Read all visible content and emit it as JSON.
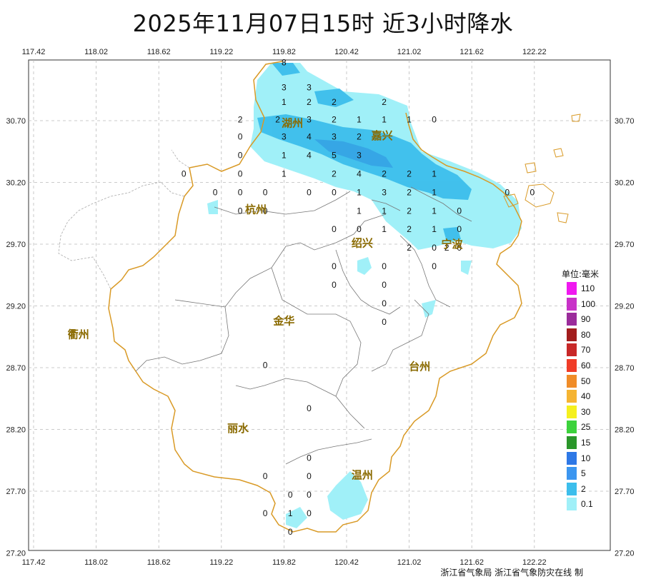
{
  "title": "2025年11月07日15时  近3小时降水",
  "credit": "浙江省气象局  浙江省气象防灾在线  制",
  "axes": {
    "lon_ticks": [
      "117.42",
      "118.02",
      "118.62",
      "119.22",
      "119.82",
      "120.42",
      "121.02",
      "121.62",
      "122.22"
    ],
    "lat_ticks": [
      "30.70",
      "30.20",
      "29.70",
      "29.20",
      "28.70",
      "28.20",
      "27.70",
      "27.20"
    ]
  },
  "cities": [
    {
      "name": "湖州",
      "lon": 119.9,
      "lat": 30.68
    },
    {
      "name": "嘉兴",
      "lon": 120.76,
      "lat": 30.58
    },
    {
      "name": "杭州",
      "lon": 119.55,
      "lat": 29.98
    },
    {
      "name": "绍兴",
      "lon": 120.57,
      "lat": 29.71
    },
    {
      "name": "宁波",
      "lon": 121.43,
      "lat": 29.7
    },
    {
      "name": "衢州",
      "lon": 117.85,
      "lat": 28.97
    },
    {
      "name": "金华",
      "lon": 119.82,
      "lat": 29.08
    },
    {
      "name": "台州",
      "lon": 121.12,
      "lat": 28.71
    },
    {
      "name": "丽水",
      "lon": 119.38,
      "lat": 28.21
    },
    {
      "name": "温州",
      "lon": 120.57,
      "lat": 27.83
    }
  ],
  "stations": [
    {
      "v": "8",
      "lon": 119.82,
      "lat": 31.17
    },
    {
      "v": "3",
      "lon": 119.82,
      "lat": 30.97
    },
    {
      "v": "3",
      "lon": 120.06,
      "lat": 30.97
    },
    {
      "v": "1",
      "lon": 119.82,
      "lat": 30.85
    },
    {
      "v": "2",
      "lon": 120.06,
      "lat": 30.85
    },
    {
      "v": "2",
      "lon": 120.3,
      "lat": 30.85
    },
    {
      "v": "2",
      "lon": 120.78,
      "lat": 30.85
    },
    {
      "v": "2",
      "lon": 119.4,
      "lat": 30.71
    },
    {
      "v": "2",
      "lon": 119.76,
      "lat": 30.71
    },
    {
      "v": "3",
      "lon": 120.06,
      "lat": 30.71
    },
    {
      "v": "2",
      "lon": 120.3,
      "lat": 30.71
    },
    {
      "v": "1",
      "lon": 120.54,
      "lat": 30.71
    },
    {
      "v": "1",
      "lon": 120.78,
      "lat": 30.71
    },
    {
      "v": "1",
      "lon": 121.02,
      "lat": 30.71
    },
    {
      "v": "0",
      "lon": 121.26,
      "lat": 30.71
    },
    {
      "v": "0",
      "lon": 119.4,
      "lat": 30.57
    },
    {
      "v": "3",
      "lon": 119.82,
      "lat": 30.57
    },
    {
      "v": "4",
      "lon": 120.06,
      "lat": 30.57
    },
    {
      "v": "3",
      "lon": 120.3,
      "lat": 30.57
    },
    {
      "v": "2",
      "lon": 120.54,
      "lat": 30.57
    },
    {
      "v": "0",
      "lon": 119.4,
      "lat": 30.42
    },
    {
      "v": "1",
      "lon": 119.82,
      "lat": 30.42
    },
    {
      "v": "4",
      "lon": 120.06,
      "lat": 30.42
    },
    {
      "v": "5",
      "lon": 120.3,
      "lat": 30.42
    },
    {
      "v": "3",
      "lon": 120.54,
      "lat": 30.42
    },
    {
      "v": "0",
      "lon": 118.86,
      "lat": 30.27
    },
    {
      "v": "0",
      "lon": 119.4,
      "lat": 30.27
    },
    {
      "v": "1",
      "lon": 119.82,
      "lat": 30.27
    },
    {
      "v": "2",
      "lon": 120.3,
      "lat": 30.27
    },
    {
      "v": "4",
      "lon": 120.54,
      "lat": 30.27
    },
    {
      "v": "2",
      "lon": 120.78,
      "lat": 30.27
    },
    {
      "v": "2",
      "lon": 121.02,
      "lat": 30.27
    },
    {
      "v": "1",
      "lon": 121.26,
      "lat": 30.27
    },
    {
      "v": "0",
      "lon": 119.16,
      "lat": 30.12
    },
    {
      "v": "0",
      "lon": 119.4,
      "lat": 30.12
    },
    {
      "v": "0",
      "lon": 119.64,
      "lat": 30.12
    },
    {
      "v": "0",
      "lon": 120.06,
      "lat": 30.12
    },
    {
      "v": "0",
      "lon": 120.3,
      "lat": 30.12
    },
    {
      "v": "1",
      "lon": 120.54,
      "lat": 30.12
    },
    {
      "v": "3",
      "lon": 120.78,
      "lat": 30.12
    },
    {
      "v": "2",
      "lon": 121.02,
      "lat": 30.12
    },
    {
      "v": "1",
      "lon": 121.26,
      "lat": 30.12
    },
    {
      "v": "0",
      "lon": 121.96,
      "lat": 30.12
    },
    {
      "v": "0",
      "lon": 122.2,
      "lat": 30.12
    },
    {
      "v": "0",
      "lon": 119.4,
      "lat": 29.97
    },
    {
      "v": "0",
      "lon": 119.64,
      "lat": 29.97
    },
    {
      "v": "1",
      "lon": 120.54,
      "lat": 29.97
    },
    {
      "v": "1",
      "lon": 120.78,
      "lat": 29.97
    },
    {
      "v": "2",
      "lon": 121.02,
      "lat": 29.97
    },
    {
      "v": "1",
      "lon": 121.26,
      "lat": 29.97
    },
    {
      "v": "0",
      "lon": 121.5,
      "lat": 29.97
    },
    {
      "v": "0",
      "lon": 120.3,
      "lat": 29.82
    },
    {
      "v": "0",
      "lon": 120.54,
      "lat": 29.82
    },
    {
      "v": "1",
      "lon": 120.78,
      "lat": 29.82
    },
    {
      "v": "2",
      "lon": 121.02,
      "lat": 29.82
    },
    {
      "v": "1",
      "lon": 121.26,
      "lat": 29.82
    },
    {
      "v": "0",
      "lon": 121.5,
      "lat": 29.82
    },
    {
      "v": "2",
      "lon": 121.02,
      "lat": 29.67
    },
    {
      "v": "0",
      "lon": 121.26,
      "lat": 29.67
    },
    {
      "v": "2",
      "lon": 121.38,
      "lat": 29.67
    },
    {
      "v": "0",
      "lon": 121.5,
      "lat": 29.67
    },
    {
      "v": "0",
      "lon": 120.3,
      "lat": 29.52
    },
    {
      "v": "0",
      "lon": 120.78,
      "lat": 29.52
    },
    {
      "v": "0",
      "lon": 121.26,
      "lat": 29.52
    },
    {
      "v": "0",
      "lon": 120.3,
      "lat": 29.37
    },
    {
      "v": "0",
      "lon": 120.78,
      "lat": 29.37
    },
    {
      "v": "0",
      "lon": 120.78,
      "lat": 29.22
    },
    {
      "v": "0",
      "lon": 120.78,
      "lat": 29.07
    },
    {
      "v": "0",
      "lon": 119.64,
      "lat": 28.72
    },
    {
      "v": "0",
      "lon": 120.06,
      "lat": 28.37
    },
    {
      "v": "0",
      "lon": 120.06,
      "lat": 27.97
    },
    {
      "v": "0",
      "lon": 119.64,
      "lat": 27.82
    },
    {
      "v": "0",
      "lon": 120.06,
      "lat": 27.82
    },
    {
      "v": "0",
      "lon": 119.88,
      "lat": 27.67
    },
    {
      "v": "0",
      "lon": 120.06,
      "lat": 27.67
    },
    {
      "v": "0",
      "lon": 119.64,
      "lat": 27.52
    },
    {
      "v": "1",
      "lon": 119.88,
      "lat": 27.52
    },
    {
      "v": "0",
      "lon": 120.06,
      "lat": 27.52
    },
    {
      "v": "0",
      "lon": 119.88,
      "lat": 27.37
    }
  ],
  "legend": {
    "title": "单位:毫米",
    "items": [
      {
        "label": "110",
        "color": "#f019f0"
      },
      {
        "label": "100",
        "color": "#c832c8"
      },
      {
        "label": "90",
        "color": "#9b2c9b"
      },
      {
        "label": "80",
        "color": "#a21d1d"
      },
      {
        "label": "70",
        "color": "#c82828"
      },
      {
        "label": "60",
        "color": "#f03c28"
      },
      {
        "label": "50",
        "color": "#f08c28"
      },
      {
        "label": "40",
        "color": "#f5b432"
      },
      {
        "label": "30",
        "color": "#f5f01e"
      },
      {
        "label": "25",
        "color": "#3cd23c"
      },
      {
        "label": "15",
        "color": "#2a962a"
      },
      {
        "label": "10",
        "color": "#2e78e6"
      },
      {
        "label": "5",
        "color": "#3c96f0"
      },
      {
        "label": "2",
        "color": "#3cbeec"
      },
      {
        "label": "0.1",
        "color": "#a0f0f8"
      }
    ]
  }
}
